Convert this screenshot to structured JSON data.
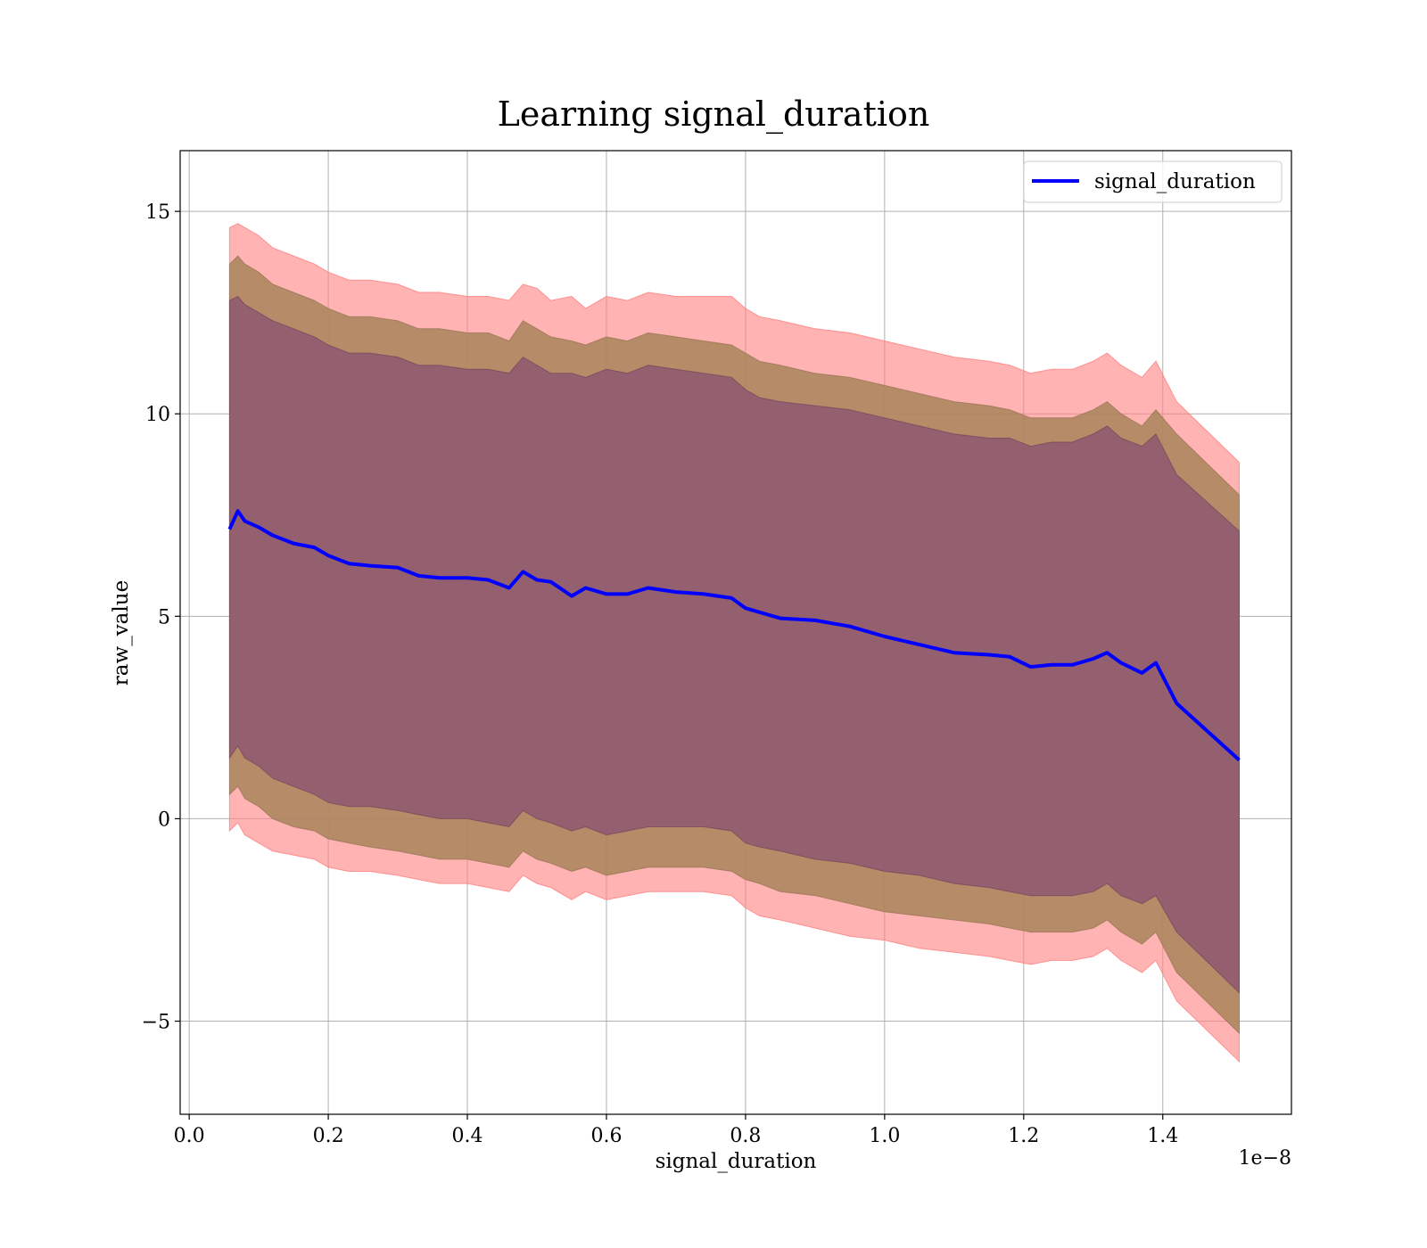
{
  "chart_data": {
    "type": "line",
    "title": "Learning signal_duration",
    "xlabel": "signal_duration",
    "ylabel": "raw_value",
    "x_scale_label": "1e−8",
    "xlim": [
      -0.013,
      1.585
    ],
    "ylim": [
      -7.3,
      16.5
    ],
    "grid": true,
    "legend": {
      "placement": "top-right",
      "entries": [
        "signal_duration"
      ]
    },
    "x_ticks": [
      {
        "value": 0.0,
        "label": "0.0"
      },
      {
        "value": 0.2,
        "label": "0.2"
      },
      {
        "value": 0.4,
        "label": "0.4"
      },
      {
        "value": 0.6,
        "label": "0.6"
      },
      {
        "value": 0.8,
        "label": "0.8"
      },
      {
        "value": 1.0,
        "label": "1.0"
      },
      {
        "value": 1.2,
        "label": "1.2"
      },
      {
        "value": 1.4,
        "label": "1.4"
      }
    ],
    "y_ticks": [
      {
        "value": -5,
        "label": "−5"
      },
      {
        "value": 0,
        "label": "0"
      },
      {
        "value": 5,
        "label": "5"
      },
      {
        "value": 10,
        "label": "10"
      },
      {
        "value": 15,
        "label": "15"
      }
    ],
    "colors": {
      "line": "#0000ff",
      "band_outer": "#ff8080",
      "band_middle": "#a8845a",
      "band_inner": "#8a5070"
    },
    "series": [
      {
        "name": "signal_duration",
        "x": [
          0.058,
          0.07,
          0.08,
          0.1,
          0.12,
          0.15,
          0.18,
          0.2,
          0.23,
          0.26,
          0.3,
          0.33,
          0.36,
          0.4,
          0.43,
          0.46,
          0.48,
          0.5,
          0.52,
          0.55,
          0.57,
          0.6,
          0.63,
          0.66,
          0.7,
          0.74,
          0.78,
          0.8,
          0.82,
          0.85,
          0.9,
          0.95,
          1.0,
          1.05,
          1.1,
          1.15,
          1.18,
          1.21,
          1.24,
          1.27,
          1.3,
          1.32,
          1.34,
          1.37,
          1.39,
          1.42,
          1.51
        ],
        "values": [
          7.15,
          7.6,
          7.35,
          7.2,
          7.0,
          6.8,
          6.7,
          6.5,
          6.3,
          6.25,
          6.2,
          6.0,
          5.95,
          5.95,
          5.9,
          5.7,
          6.1,
          5.9,
          5.85,
          5.5,
          5.7,
          5.55,
          5.55,
          5.7,
          5.6,
          5.55,
          5.45,
          5.2,
          5.1,
          4.95,
          4.9,
          4.75,
          4.5,
          4.3,
          4.1,
          4.05,
          4.0,
          3.75,
          3.8,
          3.8,
          3.95,
          4.1,
          3.85,
          3.6,
          3.85,
          2.85,
          1.45
        ],
        "outer_upper": [
          14.6,
          14.7,
          14.6,
          14.4,
          14.1,
          13.9,
          13.7,
          13.5,
          13.3,
          13.3,
          13.2,
          13.0,
          13.0,
          12.9,
          12.9,
          12.8,
          13.2,
          13.1,
          12.8,
          12.9,
          12.6,
          12.9,
          12.8,
          13.0,
          12.9,
          12.9,
          12.9,
          12.6,
          12.4,
          12.3,
          12.1,
          12.0,
          11.8,
          11.6,
          11.4,
          11.3,
          11.2,
          11.0,
          11.1,
          11.1,
          11.3,
          11.5,
          11.2,
          10.9,
          11.3,
          10.3,
          8.8
        ],
        "outer_lower": [
          -0.3,
          -0.1,
          -0.4,
          -0.6,
          -0.8,
          -0.9,
          -1.0,
          -1.2,
          -1.3,
          -1.3,
          -1.4,
          -1.5,
          -1.6,
          -1.6,
          -1.7,
          -1.8,
          -1.4,
          -1.6,
          -1.7,
          -2.0,
          -1.8,
          -2.0,
          -1.9,
          -1.8,
          -1.8,
          -1.8,
          -1.9,
          -2.2,
          -2.4,
          -2.5,
          -2.7,
          -2.9,
          -3.0,
          -3.2,
          -3.3,
          -3.4,
          -3.5,
          -3.6,
          -3.5,
          -3.5,
          -3.4,
          -3.2,
          -3.5,
          -3.8,
          -3.5,
          -4.5,
          -6.0
        ],
        "middle_upper": [
          13.7,
          13.9,
          13.7,
          13.5,
          13.2,
          13.0,
          12.8,
          12.6,
          12.4,
          12.4,
          12.3,
          12.1,
          12.1,
          12.0,
          12.0,
          11.8,
          12.3,
          12.1,
          11.9,
          11.8,
          11.7,
          11.9,
          11.8,
          12.0,
          11.9,
          11.8,
          11.7,
          11.5,
          11.3,
          11.2,
          11.0,
          10.9,
          10.7,
          10.5,
          10.3,
          10.2,
          10.1,
          9.9,
          9.9,
          9.9,
          10.1,
          10.3,
          10.0,
          9.7,
          10.1,
          9.5,
          8.0
        ],
        "middle_lower": [
          0.6,
          0.8,
          0.5,
          0.3,
          0.0,
          -0.2,
          -0.3,
          -0.5,
          -0.6,
          -0.7,
          -0.8,
          -0.9,
          -1.0,
          -1.0,
          -1.1,
          -1.2,
          -0.8,
          -1.0,
          -1.1,
          -1.3,
          -1.2,
          -1.4,
          -1.3,
          -1.2,
          -1.2,
          -1.2,
          -1.3,
          -1.5,
          -1.6,
          -1.8,
          -1.9,
          -2.1,
          -2.3,
          -2.4,
          -2.5,
          -2.6,
          -2.7,
          -2.8,
          -2.8,
          -2.8,
          -2.7,
          -2.5,
          -2.8,
          -3.1,
          -2.8,
          -3.8,
          -5.3
        ],
        "inner_upper": [
          12.8,
          12.9,
          12.7,
          12.5,
          12.3,
          12.1,
          11.9,
          11.7,
          11.5,
          11.5,
          11.4,
          11.2,
          11.2,
          11.1,
          11.1,
          11.0,
          11.4,
          11.2,
          11.0,
          11.0,
          10.9,
          11.1,
          11.0,
          11.2,
          11.1,
          11.0,
          10.9,
          10.6,
          10.4,
          10.3,
          10.2,
          10.1,
          9.9,
          9.7,
          9.5,
          9.4,
          9.4,
          9.2,
          9.3,
          9.3,
          9.5,
          9.7,
          9.4,
          9.2,
          9.5,
          8.5,
          7.1
        ],
        "inner_lower": [
          1.5,
          1.8,
          1.5,
          1.3,
          1.0,
          0.8,
          0.6,
          0.4,
          0.3,
          0.3,
          0.2,
          0.1,
          0.0,
          0.0,
          -0.1,
          -0.2,
          0.2,
          0.0,
          -0.1,
          -0.3,
          -0.2,
          -0.4,
          -0.3,
          -0.2,
          -0.2,
          -0.2,
          -0.3,
          -0.6,
          -0.7,
          -0.8,
          -1.0,
          -1.1,
          -1.3,
          -1.4,
          -1.6,
          -1.7,
          -1.8,
          -1.9,
          -1.9,
          -1.9,
          -1.8,
          -1.6,
          -1.9,
          -2.1,
          -1.9,
          -2.8,
          -4.3
        ]
      }
    ]
  }
}
